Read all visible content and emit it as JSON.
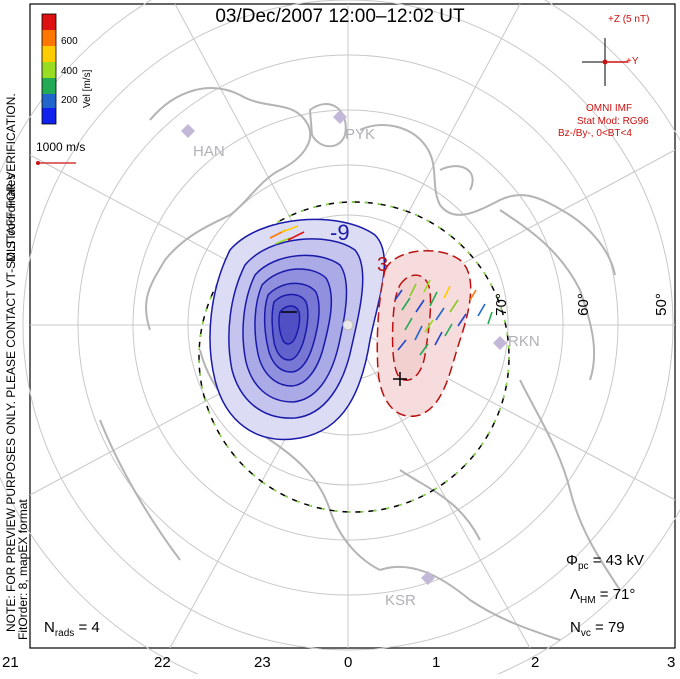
{
  "title": "03/Dec/2007 12:00–12:02 UT",
  "colorbar": {
    "label": "Vel [m/s]",
    "ticks": [
      "600",
      "400",
      "200"
    ],
    "colors": [
      "#dd1111",
      "#ff7700",
      "#ffcc00",
      "#99dd22",
      "#22aa55",
      "#2266cc",
      "#1122ee"
    ]
  },
  "coordinates_label": "MLT coordinates",
  "preview_note": "NOTE: FOR PREVIEW PURPOSES ONLY. PLEASE CONTACT VT-SD STAFF FOR VERIFICATION.",
  "fit_note": "FitOrder: 8, mapEX format",
  "scale_vector": "1000 m/s",
  "imf": {
    "z_label": "+Z (5 nT)",
    "y_label": "+Y",
    "source": "OMNI IMF",
    "model": "Stat Mod: RG96",
    "condition": "Bz-/By-, 0<BT<4"
  },
  "stations": [
    "HAN",
    "PYK",
    "RKN",
    "KSR"
  ],
  "latitude_labels": [
    "70°",
    "60°",
    "50°"
  ],
  "contour_labels": [
    "-9",
    "3"
  ],
  "mlt_ticks": [
    "21",
    "22",
    "23",
    "0",
    "1",
    "2",
    "3"
  ],
  "stats": {
    "phi_symbol": "Φ",
    "phi_sub": "pc",
    "phi_value": "= 43 kV",
    "lambda_symbol": "Λ",
    "lambda_sub": "HM",
    "lambda_value": "= 71°",
    "nvc_symbol": "N",
    "nvc_sub": "vc",
    "nvc_value": "= 79",
    "nrads_symbol": "N",
    "nrads_sub": "rads",
    "nrads_value": "= 4"
  }
}
